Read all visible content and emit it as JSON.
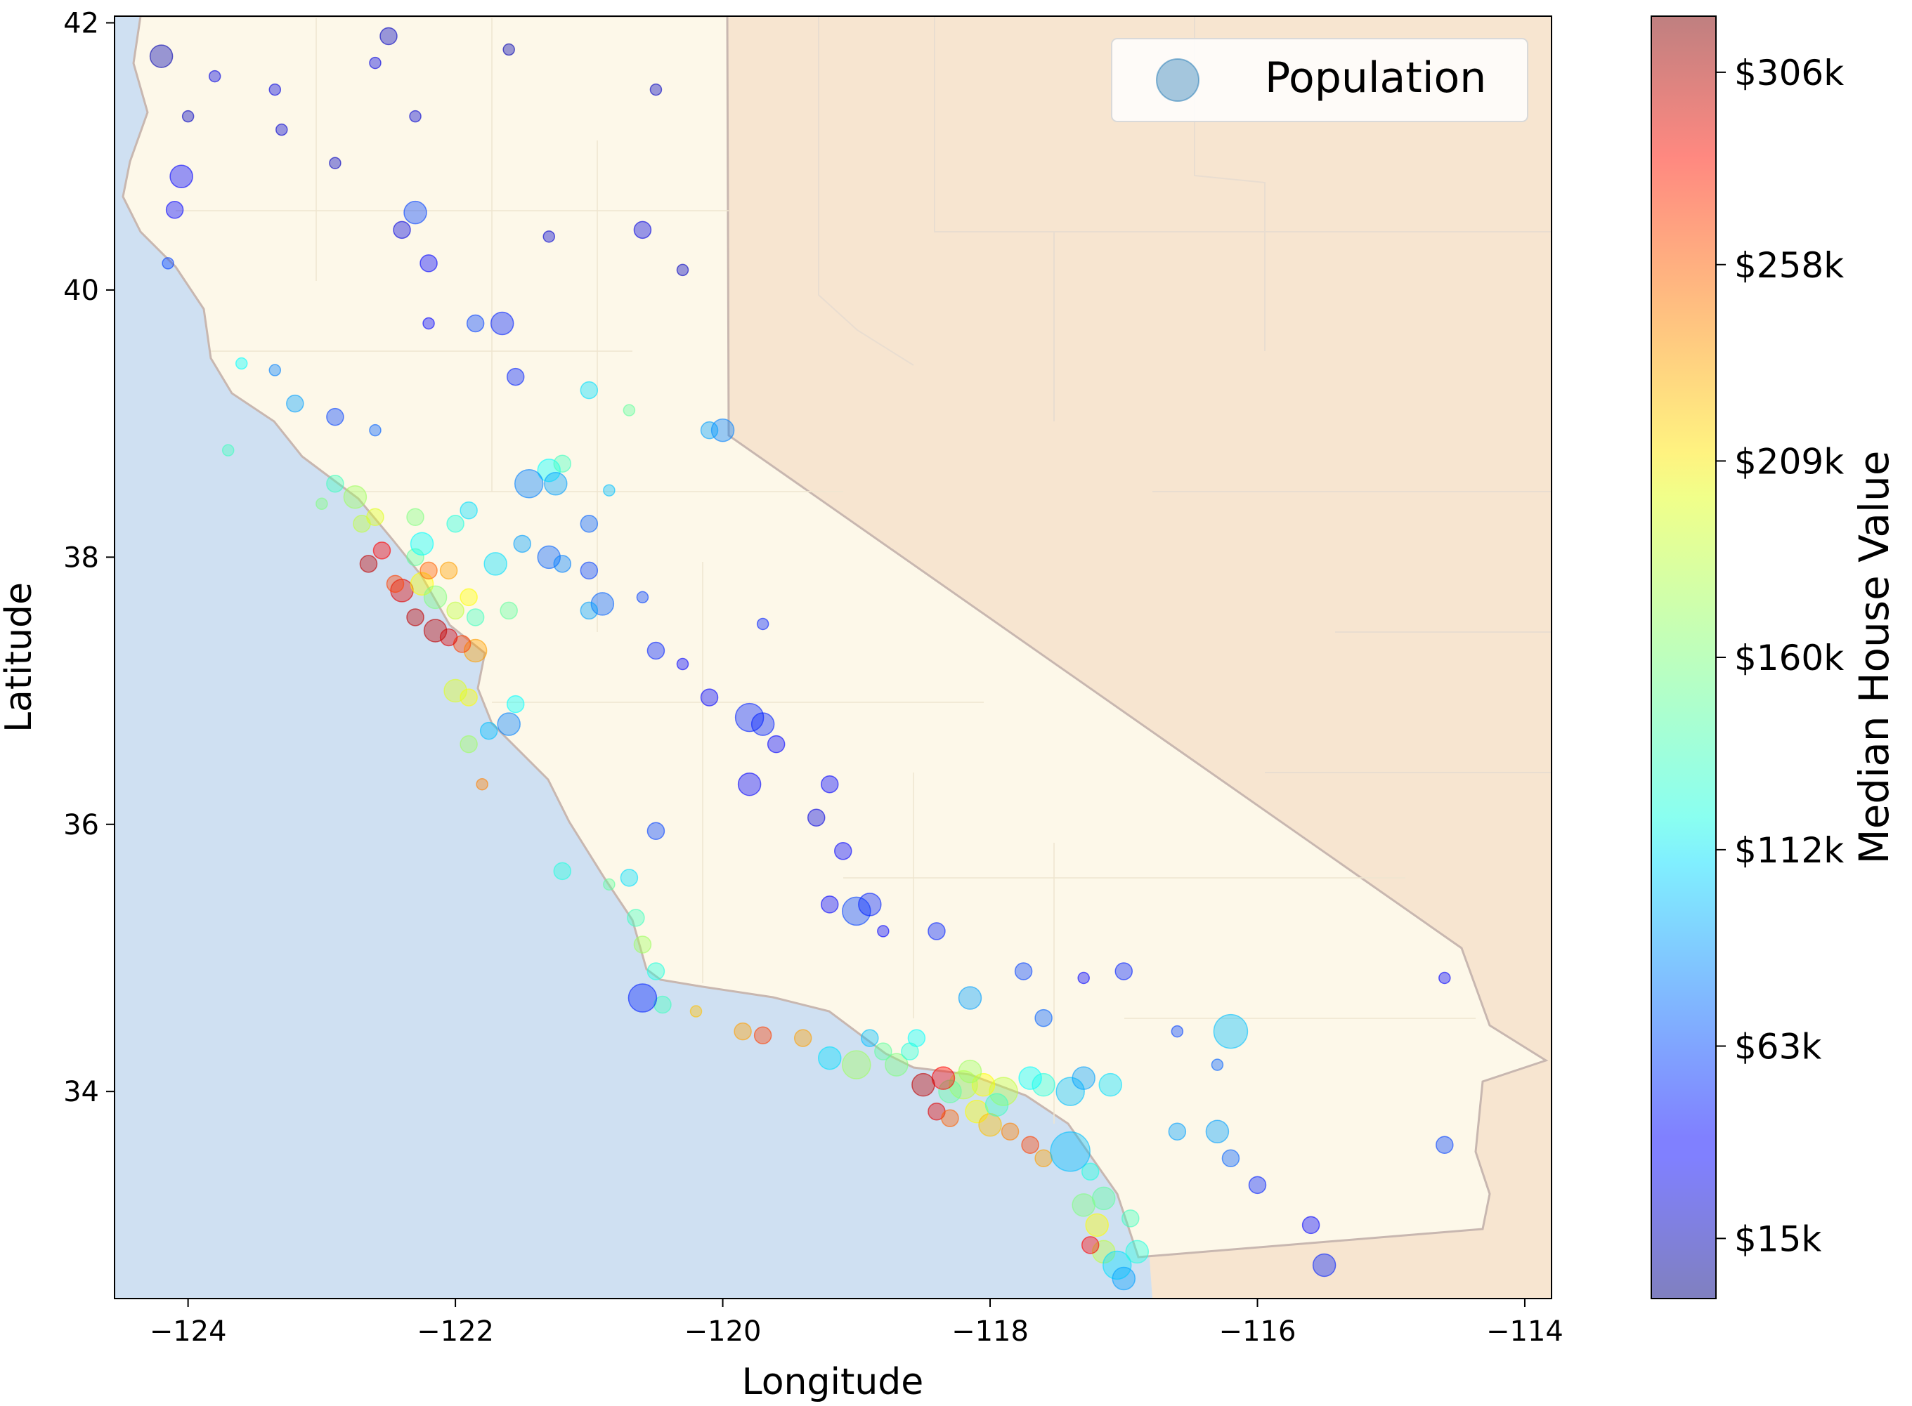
{
  "chart_data": {
    "type": "scatter",
    "xlabel": "Longitude",
    "ylabel": "Latitude",
    "xlim": [
      -124.55,
      -113.8
    ],
    "ylim": [
      32.45,
      42.05
    ],
    "x_ticks": [
      -124,
      -122,
      -120,
      -118,
      -116,
      -114
    ],
    "x_tick_labels": [
      "−124",
      "−122",
      "−120",
      "−118",
      "−116",
      "−114"
    ],
    "y_ticks": [
      34,
      36,
      38,
      40,
      42
    ],
    "y_tick_labels": [
      "34",
      "36",
      "38",
      "40",
      "42"
    ],
    "legend": {
      "placement": "top-right",
      "entries": [
        "Population"
      ]
    },
    "colorbar": {
      "label": "Median House Value",
      "colormap": "jet",
      "range": [
        0,
        320
      ],
      "tick_values": [
        15,
        63,
        112,
        160,
        209,
        258,
        306
      ],
      "tick_labels": [
        "$15k",
        "$63k",
        "$112k",
        "$160k",
        "$209k",
        "$258k",
        "$306k"
      ]
    },
    "background_map": {
      "land_color": "#fdf8e9",
      "neighbor_states_color": "#f7e5d0",
      "ocean_color": "#cfe0f2",
      "border_color": "#c8b7b0"
    },
    "series": [
      {
        "name": "Population",
        "marker_alpha": 0.4,
        "points_format": [
          "longitude",
          "latitude",
          "median_house_value_k",
          "size"
        ],
        "points": [
          [
            -124.2,
            41.75,
            15,
            3
          ],
          [
            -124.05,
            40.85,
            40,
            3
          ],
          [
            -124.1,
            40.6,
            40,
            2
          ],
          [
            -124.0,
            41.3,
            20,
            1
          ],
          [
            -123.8,
            41.6,
            30,
            1
          ],
          [
            -123.3,
            41.2,
            25,
            1
          ],
          [
            -122.6,
            41.7,
            30,
            1
          ],
          [
            -122.3,
            41.3,
            25,
            1
          ],
          [
            -121.6,
            41.8,
            15,
            1
          ],
          [
            -120.5,
            41.5,
            20,
            1
          ],
          [
            -122.9,
            40.95,
            20,
            1
          ],
          [
            -122.3,
            40.58,
            60,
            3
          ],
          [
            -122.4,
            40.45,
            30,
            2
          ],
          [
            -122.2,
            40.2,
            40,
            2
          ],
          [
            -121.3,
            40.4,
            25,
            1
          ],
          [
            -120.6,
            40.45,
            30,
            2
          ],
          [
            -120.3,
            40.15,
            20,
            1
          ],
          [
            -121.65,
            39.75,
            50,
            3
          ],
          [
            -121.85,
            39.75,
            60,
            2
          ],
          [
            -122.2,
            39.75,
            40,
            1
          ],
          [
            -122.9,
            39.05,
            60,
            2
          ],
          [
            -122.6,
            38.95,
            70,
            1
          ],
          [
            -123.2,
            39.15,
            90,
            2
          ],
          [
            -123.35,
            39.4,
            80,
            1
          ],
          [
            -123.6,
            39.45,
            120,
            1
          ],
          [
            -123.7,
            38.8,
            140,
            1
          ],
          [
            -121.55,
            39.35,
            50,
            2
          ],
          [
            -121.0,
            39.25,
            110,
            2
          ],
          [
            -120.7,
            39.1,
            150,
            1
          ],
          [
            -121.3,
            38.65,
            120,
            3
          ],
          [
            -121.45,
            38.55,
            80,
            4
          ],
          [
            -121.25,
            38.55,
            90,
            3
          ],
          [
            -121.2,
            38.7,
            140,
            2
          ],
          [
            -120.85,
            38.5,
            100,
            1
          ],
          [
            -121.0,
            38.25,
            70,
            2
          ],
          [
            -121.3,
            38.0,
            70,
            3
          ],
          [
            -121.0,
            37.9,
            60,
            2
          ],
          [
            -120.9,
            37.65,
            70,
            3
          ],
          [
            -120.6,
            37.7,
            60,
            1
          ],
          [
            -121.0,
            37.6,
            90,
            2
          ],
          [
            -120.5,
            37.3,
            50,
            2
          ],
          [
            -120.3,
            37.2,
            40,
            1
          ],
          [
            -120.1,
            36.95,
            40,
            2
          ],
          [
            -119.8,
            36.8,
            50,
            4
          ],
          [
            -119.7,
            36.75,
            50,
            3
          ],
          [
            -119.6,
            36.6,
            40,
            2
          ],
          [
            -119.8,
            36.3,
            40,
            3
          ],
          [
            -119.2,
            36.3,
            40,
            2
          ],
          [
            -119.3,
            36.05,
            30,
            2
          ],
          [
            -119.1,
            35.8,
            40,
            2
          ],
          [
            -119.0,
            35.35,
            60,
            4
          ],
          [
            -118.9,
            35.4,
            50,
            3
          ],
          [
            -119.2,
            35.4,
            40,
            2
          ],
          [
            -118.8,
            35.2,
            40,
            1
          ],
          [
            -118.4,
            35.2,
            50,
            2
          ],
          [
            -118.15,
            34.7,
            90,
            3
          ],
          [
            -117.75,
            34.9,
            60,
            2
          ],
          [
            -117.6,
            34.55,
            70,
            2
          ],
          [
            -117.3,
            34.85,
            40,
            1
          ],
          [
            -117.0,
            34.9,
            50,
            2
          ],
          [
            -116.6,
            34.45,
            60,
            1
          ],
          [
            -116.3,
            34.2,
            70,
            1
          ],
          [
            -116.2,
            34.45,
            100,
            5
          ],
          [
            -116.6,
            33.7,
            90,
            2
          ],
          [
            -116.3,
            33.7,
            90,
            3
          ],
          [
            -116.2,
            33.5,
            70,
            2
          ],
          [
            -116.0,
            33.3,
            50,
            2
          ],
          [
            -115.6,
            33.0,
            40,
            2
          ],
          [
            -115.5,
            32.7,
            50,
            3
          ],
          [
            -114.6,
            33.6,
            60,
            2
          ],
          [
            -114.6,
            34.85,
            40,
            1
          ],
          [
            -117.1,
            34.05,
            110,
            3
          ],
          [
            -117.4,
            34.0,
            100,
            4
          ],
          [
            -117.3,
            34.1,
            90,
            3
          ],
          [
            -117.6,
            34.05,
            130,
            3
          ],
          [
            -117.9,
            34.0,
            180,
            4
          ],
          [
            -118.05,
            34.05,
            200,
            3
          ],
          [
            -118.2,
            34.05,
            180,
            4
          ],
          [
            -118.3,
            34.0,
            150,
            3
          ],
          [
            -118.35,
            34.1,
            280,
            3
          ],
          [
            -118.5,
            34.05,
            300,
            3
          ],
          [
            -118.4,
            33.85,
            290,
            2
          ],
          [
            -118.3,
            33.8,
            250,
            2
          ],
          [
            -118.1,
            33.85,
            200,
            3
          ],
          [
            -118.0,
            33.75,
            220,
            3
          ],
          [
            -117.85,
            33.7,
            240,
            2
          ],
          [
            -117.7,
            33.6,
            260,
            2
          ],
          [
            -117.6,
            33.5,
            230,
            2
          ],
          [
            -117.25,
            33.4,
            130,
            2
          ],
          [
            -117.4,
            33.55,
            100,
            6
          ],
          [
            -117.15,
            33.2,
            150,
            3
          ],
          [
            -117.2,
            33.0,
            200,
            3
          ],
          [
            -117.15,
            32.8,
            180,
            3
          ],
          [
            -117.05,
            32.7,
            110,
            4
          ],
          [
            -117.0,
            32.6,
            90,
            3
          ],
          [
            -117.25,
            32.85,
            280,
            2
          ],
          [
            -118.7,
            34.2,
            160,
            3
          ],
          [
            -118.8,
            34.3,
            150,
            2
          ],
          [
            -118.55,
            34.4,
            120,
            2
          ],
          [
            -118.9,
            34.4,
            100,
            2
          ],
          [
            -119.2,
            34.25,
            110,
            3
          ],
          [
            -119.4,
            34.4,
            230,
            2
          ],
          [
            -119.7,
            34.42,
            260,
            2
          ],
          [
            -119.85,
            34.45,
            230,
            2
          ],
          [
            -120.2,
            34.6,
            220,
            1
          ],
          [
            -120.45,
            34.65,
            140,
            2
          ],
          [
            -120.6,
            34.7,
            50,
            4
          ],
          [
            -120.5,
            34.9,
            130,
            2
          ],
          [
            -120.6,
            35.1,
            170,
            2
          ],
          [
            -120.65,
            35.3,
            140,
            2
          ],
          [
            -120.7,
            35.6,
            110,
            2
          ],
          [
            -120.85,
            35.55,
            150,
            1
          ],
          [
            -121.2,
            35.65,
            130,
            2
          ],
          [
            -121.8,
            36.3,
            240,
            1
          ],
          [
            -121.9,
            36.6,
            170,
            2
          ],
          [
            -121.75,
            36.7,
            100,
            2
          ],
          [
            -121.6,
            36.75,
            80,
            3
          ],
          [
            -121.55,
            36.9,
            120,
            2
          ],
          [
            -121.9,
            36.95,
            200,
            2
          ],
          [
            -122.0,
            37.0,
            190,
            3
          ],
          [
            -121.85,
            37.3,
            230,
            3
          ],
          [
            -121.95,
            37.35,
            260,
            2
          ],
          [
            -122.05,
            37.4,
            290,
            2
          ],
          [
            -122.15,
            37.45,
            300,
            3
          ],
          [
            -122.3,
            37.55,
            300,
            2
          ],
          [
            -122.4,
            37.75,
            290,
            3
          ],
          [
            -122.45,
            37.8,
            260,
            2
          ],
          [
            -122.25,
            37.8,
            200,
            3
          ],
          [
            -122.15,
            37.7,
            160,
            3
          ],
          [
            -122.0,
            37.6,
            180,
            2
          ],
          [
            -121.9,
            37.7,
            200,
            2
          ],
          [
            -122.05,
            37.9,
            230,
            2
          ],
          [
            -122.2,
            37.9,
            250,
            2
          ],
          [
            -122.3,
            38.0,
            150,
            2
          ],
          [
            -122.25,
            38.1,
            120,
            3
          ],
          [
            -122.0,
            38.25,
            130,
            2
          ],
          [
            -122.65,
            37.95,
            300,
            2
          ],
          [
            -122.55,
            38.05,
            280,
            2
          ],
          [
            -122.7,
            38.25,
            180,
            2
          ],
          [
            -122.75,
            38.45,
            170,
            3
          ],
          [
            -122.6,
            38.3,
            190,
            2
          ],
          [
            -122.3,
            38.3,
            160,
            2
          ],
          [
            -122.9,
            38.55,
            140,
            2
          ],
          [
            -123.0,
            38.4,
            160,
            1
          ],
          [
            -121.9,
            38.35,
            110,
            2
          ],
          [
            -121.5,
            38.1,
            90,
            2
          ],
          [
            -121.7,
            37.95,
            110,
            3
          ],
          [
            -121.6,
            37.6,
            150,
            2
          ],
          [
            -121.85,
            37.55,
            140,
            2
          ],
          [
            -120.5,
            35.95,
            60,
            2
          ],
          [
            -121.2,
            37.95,
            80,
            2
          ],
          [
            -119.0,
            34.2,
            170,
            4
          ],
          [
            -118.6,
            34.3,
            130,
            2
          ],
          [
            -117.95,
            33.9,
            140,
            3
          ],
          [
            -118.15,
            34.15,
            170,
            3
          ],
          [
            -117.7,
            34.1,
            120,
            3
          ],
          [
            -116.9,
            32.8,
            130,
            3
          ],
          [
            -116.95,
            33.05,
            140,
            2
          ],
          [
            -117.3,
            33.15,
            160,
            3
          ],
          [
            -123.35,
            41.5,
            30,
            1
          ],
          [
            -122.5,
            41.9,
            20,
            2
          ],
          [
            -124.15,
            40.2,
            60,
            1
          ],
          [
            -120.0,
            38.95,
            80,
            3
          ],
          [
            -120.1,
            38.95,
            90,
            2
          ],
          [
            -119.7,
            37.5,
            50,
            1
          ]
        ]
      }
    ]
  }
}
